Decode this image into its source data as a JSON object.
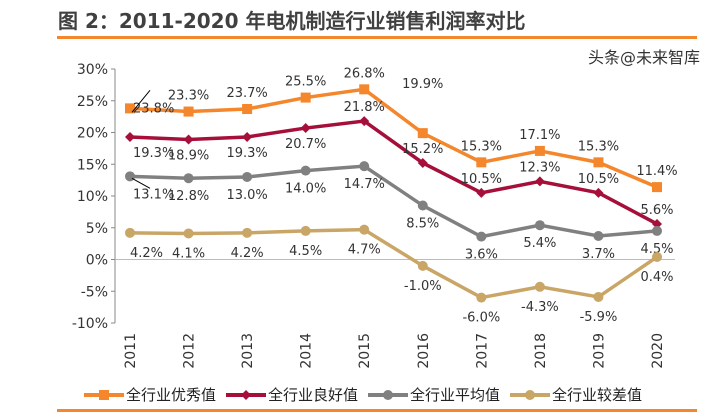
{
  "chart_data": {
    "type": "line",
    "title": "图 2：2011-2020 年电机制造行业销售利润率对比",
    "categories": [
      "2011",
      "2012",
      "2013",
      "2014",
      "2015",
      "2016",
      "2017",
      "2018",
      "2019",
      "2020"
    ],
    "ylim": [
      -10,
      30
    ],
    "yticks": [
      -10,
      -5,
      0,
      5,
      10,
      15,
      20,
      25,
      30
    ],
    "ytick_format": "%",
    "grid": false,
    "legend_position": "bottom",
    "series": [
      {
        "name": "全行业优秀值",
        "color": "#F4862C",
        "marker": "square",
        "values": [
          23.8,
          23.3,
          23.7,
          25.5,
          26.8,
          19.9,
          15.3,
          17.1,
          15.3,
          11.4
        ]
      },
      {
        "name": "全行业良好值",
        "color": "#A50F3A",
        "marker": "diamond",
        "values": [
          19.3,
          18.9,
          19.3,
          20.7,
          21.8,
          15.2,
          10.5,
          12.3,
          10.5,
          5.6
        ]
      },
      {
        "name": "全行业平均值",
        "color": "#808080",
        "marker": "circle",
        "values": [
          13.1,
          12.8,
          13.0,
          14.0,
          14.7,
          8.5,
          3.6,
          5.4,
          3.7,
          4.5
        ]
      },
      {
        "name": "全行业较差值",
        "color": "#C9A566",
        "marker": "circle",
        "values": [
          4.2,
          4.1,
          4.2,
          4.5,
          4.7,
          -1.0,
          -6.0,
          -4.3,
          -5.9,
          0.4
        ]
      }
    ]
  },
  "watermark": "头条@未来智库"
}
